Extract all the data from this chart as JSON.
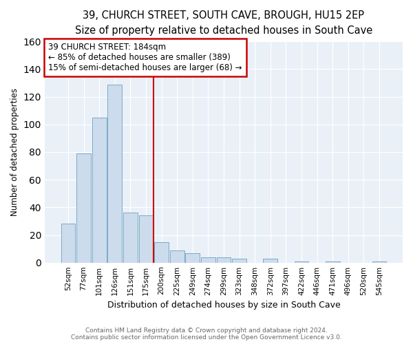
{
  "title": "39, CHURCH STREET, SOUTH CAVE, BROUGH, HU15 2EP",
  "subtitle": "Size of property relative to detached houses in South Cave",
  "xlabel": "Distribution of detached houses by size in South Cave",
  "ylabel": "Number of detached properties",
  "categories": [
    "52sqm",
    "77sqm",
    "101sqm",
    "126sqm",
    "151sqm",
    "175sqm",
    "200sqm",
    "225sqm",
    "249sqm",
    "274sqm",
    "299sqm",
    "323sqm",
    "348sqm",
    "372sqm",
    "397sqm",
    "422sqm",
    "446sqm",
    "471sqm",
    "496sqm",
    "520sqm",
    "545sqm"
  ],
  "values": [
    28,
    79,
    105,
    129,
    36,
    34,
    15,
    9,
    7,
    4,
    4,
    3,
    0,
    3,
    0,
    1,
    0,
    1,
    0,
    0,
    1
  ],
  "bar_color": "#ccdcec",
  "bar_edge_color": "#7aaac8",
  "property_label": "39 CHURCH STREET: 184sqm",
  "annotation_line1": "← 85% of detached houses are smaller (389)",
  "annotation_line2": "15% of semi-detached houses are larger (68) →",
  "annotation_box_color": "#cc0000",
  "vline_color": "#cc0000",
  "vline_x": 5.5,
  "ylim": [
    0,
    160
  ],
  "yticks": [
    0,
    20,
    40,
    60,
    80,
    100,
    120,
    140,
    160
  ],
  "footer_line1": "Contains HM Land Registry data © Crown copyright and database right 2024.",
  "footer_line2": "Contains public sector information licensed under the Open Government Licence v3.0.",
  "bg_color": "#e8eef5",
  "plot_bg_color": "#eaf0f7",
  "title_fontsize": 10.5,
  "subtitle_fontsize": 9.5
}
